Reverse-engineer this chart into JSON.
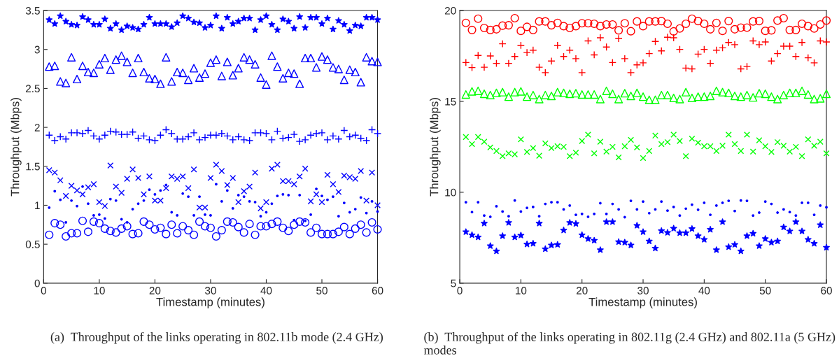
{
  "chart_data": [
    {
      "type": "scatter",
      "xlabel": "Timestamp (minutes)",
      "ylabel": "Throughput (Mbps)",
      "x": [
        1,
        2,
        3,
        4,
        5,
        6,
        7,
        8,
        9,
        10,
        11,
        12,
        13,
        14,
        15,
        16,
        17,
        18,
        19,
        20,
        21,
        22,
        23,
        24,
        25,
        26,
        27,
        28,
        29,
        30,
        31,
        32,
        33,
        34,
        35,
        36,
        37,
        38,
        39,
        40,
        41,
        42,
        43,
        44,
        45,
        46,
        47,
        48,
        49,
        50,
        51,
        52,
        53,
        54,
        55,
        56,
        57,
        58,
        59,
        60
      ],
      "xlim": [
        0,
        60
      ],
      "xticks": [
        0,
        10,
        20,
        30,
        40,
        50,
        60
      ],
      "ylim": [
        0,
        3.5
      ],
      "yticks": [
        0,
        0.5,
        1,
        1.5,
        2,
        2.5,
        3,
        3.5
      ],
      "grid": false,
      "annotations": [
        "(a)  Throughput of the links operating in 802.11b mode (2.4 GHz)"
      ],
      "series": [
        {
          "color": "#0000ff",
          "marker": "star",
          "values": [
            3.38,
            3.33,
            3.43,
            3.36,
            3.32,
            3.31,
            3.42,
            3.38,
            3.32,
            3.32,
            3.39,
            3.27,
            3.33,
            3.25,
            3.3,
            3.28,
            3.26,
            3.32,
            3.41,
            3.33,
            3.33,
            3.33,
            3.29,
            3.34,
            3.43,
            3.4,
            3.35,
            3.34,
            3.28,
            3.31,
            3.43,
            3.27,
            3.41,
            3.33,
            3.36,
            3.4,
            3.4,
            3.25,
            3.38,
            3.43,
            3.32,
            3.25,
            3.39,
            3.36,
            3.27,
            3.42,
            3.28,
            3.41,
            3.41,
            3.33,
            3.4,
            3.26,
            3.37,
            3.32,
            3.24,
            3.31,
            3.3,
            3.41,
            3.41,
            3.38
          ]
        },
        {
          "color": "#0000ff",
          "marker": "triangle",
          "values": [
            2.78,
            2.79,
            2.59,
            2.57,
            2.9,
            2.62,
            2.79,
            2.71,
            2.7,
            2.81,
            2.89,
            2.74,
            2.87,
            2.92,
            2.84,
            2.7,
            2.89,
            2.71,
            2.63,
            2.62,
            2.56,
            2.9,
            2.59,
            2.71,
            2.7,
            2.61,
            2.76,
            2.64,
            2.69,
            2.83,
            2.87,
            2.66,
            2.84,
            2.67,
            2.76,
            2.9,
            2.87,
            2.81,
            2.64,
            2.55,
            2.92,
            2.78,
            2.63,
            2.7,
            2.69,
            2.56,
            2.89,
            2.89,
            2.77,
            2.91,
            2.87,
            2.77,
            2.75,
            2.61,
            2.74,
            2.71,
            2.58,
            2.9,
            2.85,
            2.84
          ]
        },
        {
          "color": "#0000ff",
          "marker": "plus",
          "values": [
            1.9,
            1.83,
            1.88,
            1.85,
            1.93,
            1.93,
            1.92,
            1.96,
            1.89,
            1.85,
            1.9,
            1.95,
            1.94,
            1.91,
            1.91,
            1.94,
            1.86,
            1.89,
            1.84,
            1.83,
            1.9,
            1.97,
            1.92,
            1.85,
            1.85,
            1.88,
            1.93,
            1.84,
            1.87,
            1.9,
            1.9,
            1.92,
            1.89,
            1.84,
            1.88,
            1.84,
            1.83,
            1.93,
            1.93,
            1.92,
            1.84,
            1.95,
            1.86,
            1.87,
            1.91,
            1.82,
            1.84,
            1.9,
            1.92,
            1.93,
            1.84,
            1.89,
            1.85,
            1.96,
            1.88,
            1.9,
            1.86,
            1.83,
            1.97,
            1.92
          ]
        },
        {
          "color": "#0000ff",
          "marker": "x",
          "values": [
            1.45,
            1.42,
            1.32,
            1.12,
            1.25,
            1.19,
            1.14,
            1.23,
            1.27,
            1.04,
            0.99,
            1.51,
            1.24,
            1.16,
            1.34,
            1.46,
            1.35,
            1.14,
            1.37,
            1.06,
            1.06,
            1.22,
            1.37,
            1.34,
            1.37,
            1.22,
            1.46,
            0.97,
            0.97,
            1.35,
            1.52,
            1.44,
            1.26,
            1.35,
            1.04,
            1.18,
            1.24,
            1.42,
            0.96,
            1.04,
            1.47,
            1.52,
            1.31,
            1.31,
            1.27,
            1.37,
            1.47,
            1.05,
            1.14,
            1.04,
            1.39,
            1.27,
            1.17,
            1.38,
            1.36,
            1.34,
            1.44,
            1.06,
            1.42,
            1.0
          ]
        },
        {
          "color": "#0000ff",
          "marker": "point",
          "values": [
            0.97,
            1.18,
            1.07,
            0.78,
            1.06,
            0.99,
            1.24,
            1.02,
            0.87,
            0.88,
            0.83,
            1.08,
            1.06,
            0.82,
            0.78,
            0.95,
            1.02,
            1.06,
            1.2,
            1.14,
            1.19,
            1.26,
            0.91,
            0.87,
            1.15,
            1.11,
            0.87,
            1.11,
            0.88,
            0.87,
            1.27,
            1.05,
            1.19,
            0.96,
            1.13,
            1.11,
            1.05,
            1.04,
            0.86,
            0.91,
            1.02,
            1.12,
            1.14,
            1.13,
            0.81,
            1.13,
            0.8,
            0.88,
            1.21,
            1.12,
            1.07,
            1.11,
            0.86,
            1.03,
            0.91,
            0.95,
            1.1,
            0.9,
            1.05,
            0.92
          ]
        },
        {
          "color": "#0000ff",
          "marker": "circle",
          "values": [
            0.62,
            0.77,
            0.75,
            0.6,
            0.64,
            0.64,
            0.8,
            0.66,
            0.79,
            0.77,
            0.7,
            0.67,
            0.65,
            0.7,
            0.73,
            0.63,
            0.64,
            0.79,
            0.75,
            0.69,
            0.71,
            0.63,
            0.75,
            0.64,
            0.73,
            0.68,
            0.62,
            0.79,
            0.73,
            0.71,
            0.6,
            0.68,
            0.79,
            0.78,
            0.72,
            0.65,
            0.76,
            0.62,
            0.73,
            0.73,
            0.76,
            0.79,
            0.71,
            0.67,
            0.75,
            0.79,
            0.78,
            0.65,
            0.71,
            0.63,
            0.63,
            0.63,
            0.66,
            0.72,
            0.63,
            0.7,
            0.75,
            0.65,
            0.78,
            0.69
          ]
        }
      ]
    },
    {
      "type": "scatter",
      "xlabel": "Timestamp (minutes)",
      "ylabel": "Throughput (Mbps)",
      "x": [
        1,
        2,
        3,
        4,
        5,
        6,
        7,
        8,
        9,
        10,
        11,
        12,
        13,
        14,
        15,
        16,
        17,
        18,
        19,
        20,
        21,
        22,
        23,
        24,
        25,
        26,
        27,
        28,
        29,
        30,
        31,
        32,
        33,
        34,
        35,
        36,
        37,
        38,
        39,
        40,
        41,
        42,
        43,
        44,
        45,
        46,
        47,
        48,
        49,
        50,
        51,
        52,
        53,
        54,
        55,
        56,
        57,
        58,
        59,
        60
      ],
      "xlim": [
        0,
        60
      ],
      "xticks": [
        0,
        10,
        20,
        30,
        40,
        50,
        60
      ],
      "ylim": [
        5,
        20
      ],
      "yticks": [
        5,
        10,
        15,
        20
      ],
      "grid": false,
      "annotations": [
        "(b)  Throughput of the links operating in 802.11g (2.4 GHz) and 802.11a (5 GHz) modes"
      ],
      "series": [
        {
          "color": "#ff0000",
          "marker": "circle",
          "values": [
            19.32,
            18.93,
            19.55,
            19.04,
            18.93,
            18.97,
            19.17,
            19.19,
            19.58,
            18.88,
            19.1,
            18.93,
            19.4,
            19.4,
            19.19,
            19.32,
            19.14,
            19.04,
            19.14,
            19.3,
            19.3,
            19.27,
            19.14,
            19.23,
            19.23,
            18.91,
            19.3,
            18.86,
            19.4,
            19.14,
            19.4,
            19.4,
            19.42,
            19.27,
            18.85,
            19.01,
            19.27,
            19.55,
            19.42,
            19.27,
            18.97,
            19.32,
            18.88,
            19.42,
            18.97,
            19.06,
            19.06,
            19.4,
            19.42,
            18.88,
            18.91,
            19.45,
            19.58,
            18.93,
            18.93,
            19.27,
            19.14,
            19.01,
            19.23,
            19.45
          ]
        },
        {
          "color": "#ff0000",
          "marker": "plus",
          "values": [
            17.14,
            16.86,
            17.53,
            16.88,
            17.5,
            17.09,
            18.17,
            17.09,
            17.47,
            18.08,
            17.69,
            17.82,
            16.88,
            16.58,
            17.22,
            18.08,
            17.47,
            17.82,
            17.35,
            16.58,
            18.33,
            17.56,
            18.5,
            17.99,
            17.14,
            18.46,
            17.35,
            16.58,
            17.01,
            17.12,
            17.63,
            18.3,
            17.78,
            18.53,
            18.5,
            17.86,
            16.83,
            16.79,
            17.6,
            17.86,
            17.09,
            17.82,
            17.95,
            18.24,
            18.12,
            16.79,
            16.92,
            18.33,
            18.12,
            18.27,
            17.22,
            17.63,
            18.04,
            18.04,
            17.47,
            18.24,
            17.4,
            17.12,
            18.33,
            18.27
          ]
        },
        {
          "color": "#00ff00",
          "marker": "triangle",
          "values": [
            15.38,
            15.55,
            15.58,
            15.42,
            15.35,
            15.47,
            15.51,
            15.26,
            15.51,
            15.55,
            15.26,
            15.35,
            15.13,
            15.35,
            15.3,
            15.51,
            15.47,
            15.42,
            15.45,
            15.38,
            15.38,
            15.38,
            15.13,
            15.58,
            15.42,
            15.13,
            15.45,
            15.3,
            15.47,
            15.26,
            15.09,
            15.09,
            15.35,
            15.35,
            15.19,
            15.13,
            15.51,
            15.19,
            15.26,
            15.26,
            15.3,
            15.58,
            15.51,
            15.47,
            15.3,
            15.26,
            15.35,
            15.22,
            15.45,
            15.42,
            15.26,
            15.13,
            15.35,
            15.47,
            15.47,
            15.58,
            15.38,
            15.13,
            15.17,
            15.42
          ]
        },
        {
          "color": "#00ff00",
          "marker": "x",
          "values": [
            13.04,
            12.65,
            13.04,
            12.78,
            12.47,
            12.27,
            11.99,
            12.14,
            12.09,
            12.91,
            12.22,
            12.43,
            12.01,
            12.69,
            12.43,
            12.53,
            12.5,
            11.99,
            12.18,
            12.82,
            13.17,
            12.14,
            12.78,
            12.24,
            12.5,
            11.92,
            12.53,
            12.88,
            12.47,
            11.88,
            12.27,
            13.12,
            12.65,
            12.76,
            13.17,
            12.82,
            11.99,
            12.95,
            12.73,
            12.53,
            12.53,
            12.27,
            12.56,
            13.17,
            12.65,
            12.27,
            13.17,
            12.24,
            12.86,
            12.53,
            12.22,
            12.76,
            12.56,
            12.24,
            12.5,
            11.99,
            12.91,
            12.56,
            12.78,
            12.14
          ]
        },
        {
          "color": "#0000ff",
          "marker": "point",
          "values": [
            9.45,
            8.91,
            9.45,
            8.72,
            8.65,
            9.23,
            8.94,
            8.68,
            9.55,
            8.94,
            9.14,
            9.19,
            8.68,
            9.36,
            9.45,
            9.45,
            9.06,
            9.27,
            8.76,
            8.81,
            8.65,
            8.81,
            9.4,
            8.81,
            9.36,
            9.06,
            8.63,
            9.53,
            9.06,
            9.49,
            8.85,
            9.06,
            9.49,
            8.99,
            9.19,
            8.72,
            9.1,
            9.32,
            9.04,
            9.42,
            8.76,
            9.27,
            9.42,
            9.53,
            8.97,
            9.55,
            9.53,
            8.72,
            8.88,
            9.49,
            9.36,
            8.88,
            9.06,
            8.91,
            8.72,
            9.42,
            9.42,
            8.76,
            9.27,
            9.17
          ]
        },
        {
          "color": "#0000ff",
          "marker": "star",
          "values": [
            7.82,
            7.65,
            7.53,
            8.29,
            7.05,
            6.76,
            7.6,
            8.33,
            7.53,
            7.63,
            7.14,
            7.18,
            8.29,
            6.88,
            7.09,
            7.12,
            7.91,
            8.33,
            8.27,
            7.65,
            7.44,
            7.35,
            6.83,
            8.37,
            8.37,
            7.27,
            7.24,
            7.09,
            8.17,
            7.82,
            7.31,
            6.92,
            7.88,
            7.78,
            8.01,
            7.76,
            7.76,
            7.99,
            7.6,
            7.4,
            7.95,
            6.83,
            8.37,
            6.99,
            7.12,
            6.76,
            7.6,
            7.73,
            7.05,
            7.44,
            7.24,
            7.31,
            8.08,
            7.86,
            8.37,
            7.86,
            7.4,
            7.18,
            8.2,
            6.96
          ]
        }
      ]
    }
  ]
}
